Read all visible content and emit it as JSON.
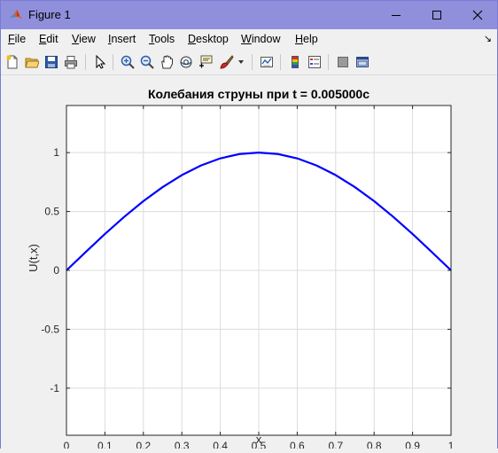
{
  "window": {
    "title": "Figure 1",
    "controls": [
      "minimize",
      "maximize",
      "close"
    ]
  },
  "menu": {
    "items": [
      {
        "label": "File",
        "key": "F",
        "rest": "ile"
      },
      {
        "label": "Edit",
        "key": "E",
        "rest": "dit"
      },
      {
        "label": "View",
        "key": "V",
        "rest": "iew"
      },
      {
        "label": "Insert",
        "key": "I",
        "rest": "nsert"
      },
      {
        "label": "Tools",
        "key": "T",
        "rest": "ools"
      },
      {
        "label": "Desktop",
        "key": "D",
        "rest": "esktop"
      },
      {
        "label": "Window",
        "key": "W",
        "rest": "indow"
      },
      {
        "label": "Help",
        "key": "H",
        "rest": "elp"
      }
    ]
  },
  "toolbar": {
    "icons": [
      "new-figure-icon",
      "open-file-icon",
      "save-icon",
      "print-icon",
      "pointer-icon",
      "zoom-in-icon",
      "zoom-out-icon",
      "pan-icon",
      "rotate-3d-icon",
      "data-cursor-icon",
      "brush-icon",
      "link-plot-icon",
      "colorbar-icon",
      "legend-icon",
      "hide-plot-tools-icon",
      "show-plot-tools-icon"
    ]
  },
  "chart_data": {
    "type": "line",
    "title": "Колебания струны при t = 0.005000c",
    "xlabel": "x",
    "ylabel": "U(t,x)",
    "xlim": [
      0,
      1
    ],
    "ylim": [
      -1.4,
      1.4
    ],
    "xticks": [
      "0",
      "0.1",
      "0.2",
      "0.3",
      "0.4",
      "0.5",
      "0.6",
      "0.7",
      "0.8",
      "0.9",
      "1"
    ],
    "yticks": [
      "-1",
      "-0.5",
      "0",
      "0.5",
      "1"
    ],
    "grid": true,
    "series": [
      {
        "color": "#0000ff",
        "x": [
          0,
          0.05,
          0.1,
          0.15,
          0.2,
          0.25,
          0.3,
          0.35,
          0.4,
          0.45,
          0.5,
          0.55,
          0.6,
          0.65,
          0.7,
          0.75,
          0.8,
          0.85,
          0.9,
          0.95,
          1
        ],
        "y": [
          0,
          0.156,
          0.309,
          0.454,
          0.588,
          0.707,
          0.809,
          0.891,
          0.951,
          0.988,
          1,
          0.988,
          0.951,
          0.891,
          0.809,
          0.707,
          0.588,
          0.454,
          0.309,
          0.156,
          0
        ]
      }
    ]
  }
}
